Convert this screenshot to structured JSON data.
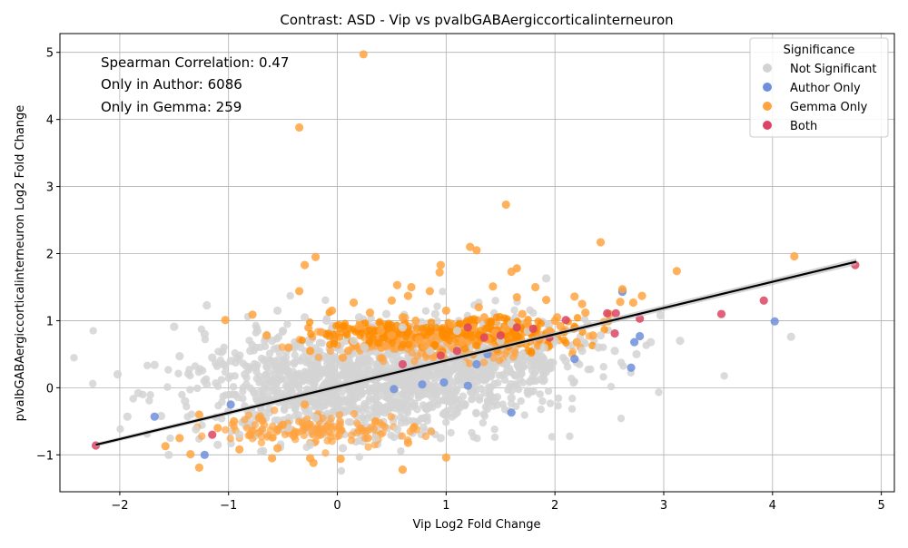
{
  "chart_data": {
    "type": "scatter",
    "title": "Contrast: ASD - Vip vs pvalbGABAergiccorticalinterneuron",
    "xlabel": "Vip Log2 Fold Change",
    "ylabel": "pvalbGABAergiccorticalinterneuron Log2 Fold Change",
    "xlim": [
      -2.55,
      5.12
    ],
    "ylim": [
      -1.55,
      5.28
    ],
    "xticks": [
      -2,
      -1,
      0,
      1,
      2,
      3,
      4,
      5
    ],
    "yticks": [
      -1,
      0,
      1,
      2,
      3,
      4,
      5
    ],
    "xtick_labels": [
      "−2",
      "−1",
      "0",
      "1",
      "2",
      "3",
      "4",
      "5"
    ],
    "ytick_labels": [
      "−1",
      "0",
      "1",
      "2",
      "3",
      "4",
      "5"
    ],
    "grid": true,
    "annotations": [
      "Spearman Correlation: 0.47",
      "Only in Author: 6086",
      "Only in Gemma: 259"
    ],
    "legend": {
      "title": "Significance",
      "placement": "top-right",
      "entries": [
        {
          "label": "Not Significant",
          "color": "#d3d3d3"
        },
        {
          "label": "Author Only",
          "color": "#6f8fdc"
        },
        {
          "label": "Gemma Only",
          "color": "#ffa340"
        },
        {
          "label": "Both",
          "color": "#dc4463"
        }
      ]
    },
    "regression_line": {
      "x": [
        -2.22,
        4.77
      ],
      "y": [
        -0.85,
        1.88
      ],
      "color": "#000000"
    },
    "series": [
      {
        "name": "Not Significant",
        "color": "#d3d3d3",
        "points": [
          [
            -2.02,
            0.2
          ],
          [
            -1.93,
            -0.43
          ],
          [
            -1.83,
            -0.08
          ],
          [
            -1.68,
            0.34
          ],
          [
            -1.5,
            0.91
          ],
          [
            -1.45,
            0.47
          ],
          [
            -1.2,
            1.23
          ],
          [
            -1.22,
            0.8
          ],
          [
            -1.05,
            0.35
          ],
          [
            -0.98,
            0.4
          ],
          [
            -0.8,
            0.55
          ],
          [
            -0.6,
            0.7
          ],
          [
            -0.55,
            1.15
          ],
          [
            -0.5,
            0.85
          ],
          [
            -0.3,
            1.05
          ],
          [
            -0.1,
            1.0
          ],
          [
            0.2,
            1.05
          ],
          [
            0.45,
            1.1
          ],
          [
            0.6,
            0.9
          ],
          [
            0.9,
            1.1
          ],
          [
            1.1,
            0.85
          ],
          [
            1.35,
            0.6
          ],
          [
            1.5,
            0.7
          ],
          [
            1.6,
            0.95
          ],
          [
            1.75,
            0.85
          ],
          [
            1.9,
            0.6
          ],
          [
            1.92,
            1.63
          ],
          [
            2.0,
            0.7
          ],
          [
            2.1,
            0.4
          ],
          [
            2.25,
            0.55
          ],
          [
            2.4,
            0.6
          ],
          [
            2.55,
            0.55
          ],
          [
            2.62,
            1.45
          ],
          [
            2.75,
            0.5
          ],
          [
            2.88,
            0.68
          ],
          [
            2.97,
            1.08
          ],
          [
            3.15,
            0.7
          ],
          [
            4.17,
            0.76
          ],
          [
            -1.62,
            -0.42
          ],
          [
            -1.55,
            -1.0
          ],
          [
            -1.3,
            -0.62
          ],
          [
            -1.1,
            -0.85
          ],
          [
            -0.9,
            -0.7
          ],
          [
            -0.7,
            -0.95
          ],
          [
            -0.45,
            -0.6
          ],
          [
            -0.25,
            -0.85
          ],
          [
            0.05,
            -0.9
          ],
          [
            0.35,
            -0.75
          ],
          [
            0.55,
            -0.62
          ],
          [
            0.8,
            -0.45
          ],
          [
            0.95,
            -0.75
          ],
          [
            1.05,
            -0.2
          ],
          [
            1.25,
            -0.05
          ],
          [
            1.45,
            -0.2
          ],
          [
            1.6,
            -0.15
          ],
          [
            1.8,
            -0.05
          ],
          [
            2.2,
            0.38
          ],
          [
            2.42,
            0.78
          ],
          [
            -0.75,
            0.3
          ],
          [
            -0.6,
            -0.2
          ],
          [
            -0.4,
            0.1
          ],
          [
            -0.2,
            0.35
          ],
          [
            0.0,
            -0.3
          ],
          [
            0.3,
            0.4
          ],
          [
            0.5,
            0.0
          ],
          [
            0.7,
            0.25
          ],
          [
            0.9,
            -0.1
          ],
          [
            1.15,
            0.35
          ],
          [
            1.3,
            0.15
          ],
          [
            1.55,
            0.35
          ],
          [
            -1.2,
            0.05
          ],
          [
            -1.0,
            -0.35
          ],
          [
            -0.85,
            0.2
          ],
          [
            -0.2,
            -0.45
          ],
          [
            0.15,
            0.7
          ],
          [
            0.4,
            -0.35
          ],
          [
            0.85,
            0.55
          ],
          [
            1.7,
            0.5
          ],
          [
            1.95,
            0.3
          ],
          [
            2.3,
            0.95
          ],
          [
            -1.4,
            -0.2
          ],
          [
            -1.15,
            0.45
          ],
          [
            0.25,
            0.6
          ]
        ]
      },
      {
        "name": "Author Only",
        "color": "#6f8fdc",
        "points": [
          [
            -1.68,
            -0.43
          ],
          [
            -1.22,
            -1.0
          ],
          [
            -0.98,
            -0.25
          ],
          [
            0.52,
            -0.02
          ],
          [
            0.78,
            0.05
          ],
          [
            0.98,
            0.08
          ],
          [
            1.2,
            0.03
          ],
          [
            1.28,
            0.35
          ],
          [
            1.38,
            0.5
          ],
          [
            1.6,
            -0.37
          ],
          [
            2.18,
            0.43
          ],
          [
            2.62,
            1.43
          ],
          [
            2.7,
            0.3
          ],
          [
            2.73,
            0.68
          ],
          [
            2.78,
            0.77
          ],
          [
            4.02,
            0.99
          ]
        ]
      },
      {
        "name": "Gemma Only",
        "color": "#ffa340",
        "points": [
          [
            0.24,
            4.97
          ],
          [
            -0.35,
            3.88
          ],
          [
            1.55,
            2.73
          ],
          [
            1.22,
            2.1
          ],
          [
            1.28,
            2.05
          ],
          [
            2.42,
            2.17
          ],
          [
            -0.2,
            1.95
          ],
          [
            -0.3,
            1.83
          ],
          [
            0.95,
            1.83
          ],
          [
            0.94,
            1.72
          ],
          [
            1.6,
            1.73
          ],
          [
            1.65,
            1.78
          ],
          [
            4.2,
            1.96
          ],
          [
            3.12,
            1.74
          ],
          [
            0.55,
            1.53
          ],
          [
            0.68,
            1.5
          ],
          [
            0.85,
            1.44
          ],
          [
            1.43,
            1.51
          ],
          [
            1.82,
            1.5
          ],
          [
            2.62,
            1.47
          ],
          [
            -0.35,
            1.44
          ],
          [
            0.65,
            1.37
          ],
          [
            1.65,
            1.35
          ],
          [
            1.92,
            1.31
          ],
          [
            2.18,
            1.36
          ],
          [
            2.25,
            1.25
          ],
          [
            2.72,
            1.27
          ],
          [
            2.8,
            1.37
          ],
          [
            -1.03,
            1.01
          ],
          [
            -0.78,
            1.09
          ],
          [
            0.15,
            1.27
          ],
          [
            0.6,
            1.05
          ],
          [
            1.3,
            1.2
          ],
          [
            2.02,
            1.05
          ],
          [
            2.5,
            1.1
          ],
          [
            -1.58,
            -0.87
          ],
          [
            -1.35,
            -0.99
          ],
          [
            -1.27,
            -0.4
          ],
          [
            -1.27,
            -1.19
          ],
          [
            -0.9,
            -0.92
          ],
          [
            -0.6,
            -1.05
          ],
          [
            -0.25,
            -1.05
          ],
          [
            -0.22,
            -1.12
          ],
          [
            0.03,
            -1.06
          ],
          [
            0.6,
            -1.22
          ],
          [
            1.0,
            -1.04
          ],
          [
            0.7,
            -0.6
          ],
          [
            0.28,
            -0.75
          ],
          [
            -0.5,
            -0.55
          ],
          [
            -0.8,
            -0.7
          ],
          [
            -0.3,
            -0.25
          ],
          [
            0.1,
            0.55
          ],
          [
            0.4,
            0.85
          ],
          [
            0.75,
            0.72
          ],
          [
            1.05,
            0.95
          ],
          [
            1.45,
            0.82
          ],
          [
            1.75,
            0.95
          ],
          [
            2.05,
            0.92
          ],
          [
            2.35,
            0.78
          ],
          [
            -0.65,
            0.78
          ],
          [
            -0.45,
            0.6
          ],
          [
            -0.15,
            0.83
          ],
          [
            0.2,
            0.92
          ],
          [
            0.5,
            0.78
          ],
          [
            0.8,
            0.62
          ],
          [
            1.15,
            0.68
          ],
          [
            1.55,
            0.88
          ],
          [
            1.85,
            0.75
          ],
          [
            2.2,
            0.68
          ],
          [
            -1.45,
            -0.75
          ],
          [
            -1.1,
            -0.6
          ],
          [
            -0.72,
            -0.45
          ],
          [
            -0.4,
            -0.72
          ],
          [
            -0.1,
            -0.58
          ],
          [
            0.35,
            -0.5
          ],
          [
            0.65,
            -0.82
          ],
          [
            -0.95,
            -0.5
          ],
          [
            -0.55,
            -0.9
          ],
          [
            0.5,
            1.3
          ],
          [
            1.0,
            1.15
          ],
          [
            1.35,
            1.05
          ],
          [
            1.7,
            1.1
          ],
          [
            2.0,
            1.0
          ],
          [
            2.28,
            1.12
          ],
          [
            2.6,
            1.28
          ],
          [
            0.3,
            1.12
          ],
          [
            -0.05,
            1.15
          ],
          [
            0.72,
            1.0
          ],
          [
            1.25,
            0.9
          ],
          [
            1.95,
            0.85
          ],
          [
            2.45,
            0.98
          ],
          [
            -0.25,
            0.55
          ],
          [
            0.05,
            0.45
          ],
          [
            0.45,
            0.62
          ],
          [
            0.95,
            0.5
          ],
          [
            1.38,
            0.72
          ]
        ]
      },
      {
        "name": "Both",
        "color": "#dc4463",
        "points": [
          [
            -2.22,
            -0.86
          ],
          [
            -1.15,
            -0.7
          ],
          [
            1.1,
            0.55
          ],
          [
            1.35,
            0.75
          ],
          [
            1.5,
            0.78
          ],
          [
            1.65,
            0.9
          ],
          [
            1.8,
            0.88
          ],
          [
            1.95,
            0.75
          ],
          [
            2.1,
            1.01
          ],
          [
            2.48,
            1.11
          ],
          [
            2.56,
            1.11
          ],
          [
            2.55,
            0.81
          ],
          [
            2.78,
            1.03
          ],
          [
            3.53,
            1.1
          ],
          [
            3.92,
            1.3
          ],
          [
            4.76,
            1.83
          ],
          [
            0.95,
            0.48
          ],
          [
            0.6,
            0.35
          ],
          [
            1.2,
            0.9
          ]
        ]
      }
    ]
  }
}
